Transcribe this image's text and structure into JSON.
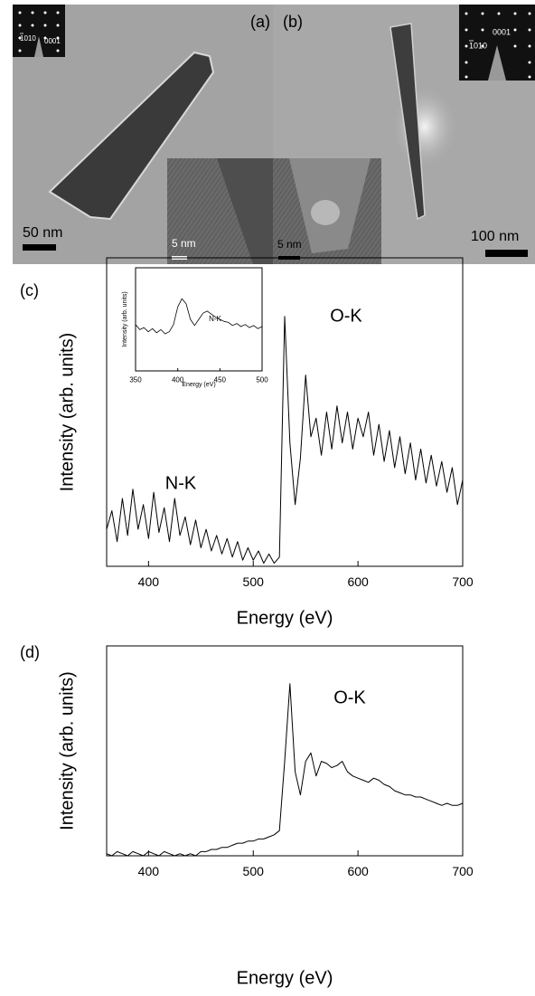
{
  "images": {
    "a": {
      "label": "(a)",
      "scale_bar": "50 nm",
      "hrtem_scale_bar": "5 nm",
      "diffraction_spots": [
        "1010",
        "0001"
      ]
    },
    "b": {
      "label": "(b)",
      "scale_bar": "100 nm",
      "hrtem_scale_bar": "5 nm",
      "diffraction_spots": [
        "0001",
        "1010"
      ]
    }
  },
  "chart_data": [
    {
      "type": "line",
      "panel_label": "(c)",
      "xlabel": "Energy (eV)",
      "ylabel": "Intensity (arb. units)",
      "annotations": [
        "N-K",
        "O-K"
      ],
      "color": "#000000",
      "x": [
        360,
        365,
        370,
        375,
        380,
        385,
        390,
        395,
        400,
        405,
        410,
        415,
        420,
        425,
        430,
        435,
        440,
        445,
        450,
        455,
        460,
        465,
        470,
        475,
        480,
        485,
        490,
        495,
        500,
        505,
        510,
        515,
        520,
        525,
        530,
        535,
        540,
        545,
        550,
        555,
        560,
        565,
        570,
        575,
        580,
        585,
        590,
        595,
        600,
        605,
        610,
        615,
        620,
        625,
        630,
        635,
        640,
        645,
        650,
        655,
        660,
        665,
        670,
        675,
        680,
        685,
        690,
        695,
        700
      ],
      "values": [
        12,
        18,
        8,
        22,
        10,
        25,
        12,
        20,
        9,
        24,
        11,
        19,
        8,
        22,
        10,
        16,
        7,
        15,
        6,
        12,
        5,
        10,
        4,
        9,
        3,
        8,
        2,
        6,
        2,
        5,
        1,
        4,
        1,
        3,
        81,
        40,
        20,
        35,
        62,
        42,
        48,
        36,
        50,
        38,
        52,
        40,
        50,
        38,
        48,
        42,
        50,
        36,
        46,
        34,
        44,
        32,
        42,
        30,
        40,
        28,
        38,
        27,
        36,
        26,
        34,
        24,
        32,
        20,
        28
      ],
      "xlim": [
        360,
        700
      ],
      "ylim": [
        0,
        100
      ],
      "xticks": [
        400,
        500,
        600,
        700
      ]
    },
    {
      "type": "line",
      "xlabel": "Energy (eV)",
      "ylabel": "Intensity (arb. units)",
      "annotations": [
        "N-K"
      ],
      "color": "#000000",
      "x": [
        350,
        355,
        360,
        365,
        370,
        375,
        380,
        385,
        390,
        395,
        400,
        405,
        410,
        415,
        420,
        425,
        430,
        435,
        440,
        445,
        450,
        455,
        460,
        465,
        470,
        475,
        480,
        485,
        490,
        495,
        500
      ],
      "values": [
        45,
        40,
        42,
        38,
        41,
        37,
        40,
        36,
        38,
        45,
        62,
        70,
        65,
        50,
        44,
        50,
        56,
        58,
        55,
        52,
        50,
        48,
        47,
        44,
        46,
        43,
        45,
        42,
        44,
        41,
        43
      ],
      "xlim": [
        350,
        500
      ],
      "ylim": [
        0,
        100
      ],
      "xticks": [
        350,
        400,
        450,
        500
      ]
    },
    {
      "type": "line",
      "panel_label": "(d)",
      "xlabel": "Energy (eV)",
      "ylabel": "Intensity (arb. units)",
      "annotations": [
        "O-K"
      ],
      "color": "#000000",
      "x": [
        360,
        365,
        370,
        375,
        380,
        385,
        390,
        395,
        400,
        405,
        410,
        415,
        420,
        425,
        430,
        435,
        440,
        445,
        450,
        455,
        460,
        465,
        470,
        475,
        480,
        485,
        490,
        495,
        500,
        505,
        510,
        515,
        520,
        525,
        530,
        535,
        540,
        545,
        550,
        555,
        560,
        565,
        570,
        575,
        580,
        585,
        590,
        595,
        600,
        605,
        610,
        615,
        620,
        625,
        630,
        635,
        640,
        645,
        650,
        655,
        660,
        665,
        670,
        675,
        680,
        685,
        690,
        695,
        700
      ],
      "values": [
        1,
        0,
        2,
        1,
        0,
        2,
        1,
        0,
        2,
        1,
        0,
        2,
        1,
        0,
        1,
        0,
        1,
        0,
        2,
        2,
        3,
        3,
        4,
        4,
        5,
        6,
        6,
        7,
        7,
        8,
        8,
        9,
        10,
        12,
        45,
        82,
        40,
        29,
        45,
        49,
        38,
        45,
        44,
        42,
        43,
        45,
        40,
        38,
        37,
        36,
        35,
        37,
        36,
        34,
        33,
        31,
        30,
        29,
        29,
        28,
        28,
        27,
        26,
        25,
        24,
        25,
        24,
        24,
        25
      ],
      "xlim": [
        360,
        700
      ],
      "ylim": [
        0,
        100
      ],
      "xticks": [
        400,
        500,
        600,
        700
      ]
    }
  ]
}
